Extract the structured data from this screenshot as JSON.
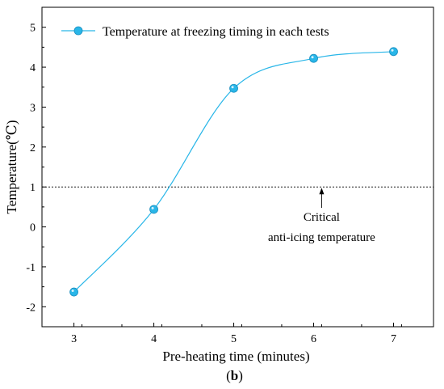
{
  "chart_data": {
    "type": "line",
    "title": "",
    "xlabel": "Pre-heating time (minutes)",
    "ylabel": "Temperature(℃)",
    "xlim": [
      2.6,
      7.5
    ],
    "ylim": [
      -2.5,
      5.5
    ],
    "x_ticks": [
      "3",
      "4",
      "5",
      "6",
      "7"
    ],
    "y_ticks": [
      "-2",
      "-1",
      "0",
      "1",
      "2",
      "3",
      "4",
      "5"
    ],
    "series": [
      {
        "name": "Temperature at freezing timing in each tests",
        "x": [
          3,
          4,
          5,
          6,
          7
        ],
        "y": [
          -1.63,
          0.44,
          3.47,
          4.22,
          4.39
        ],
        "color": "#29b6e8",
        "smooth": true
      }
    ],
    "reference_line": {
      "y": 1,
      "style": "dashed"
    },
    "annotation": {
      "lines": [
        "Critical",
        "anti-icing temperature"
      ],
      "x": 6.1,
      "y": 1
    },
    "legend": "top-left",
    "grid": false,
    "panel_label": {
      "open": "(",
      "letter": "b",
      "close": ")"
    }
  }
}
